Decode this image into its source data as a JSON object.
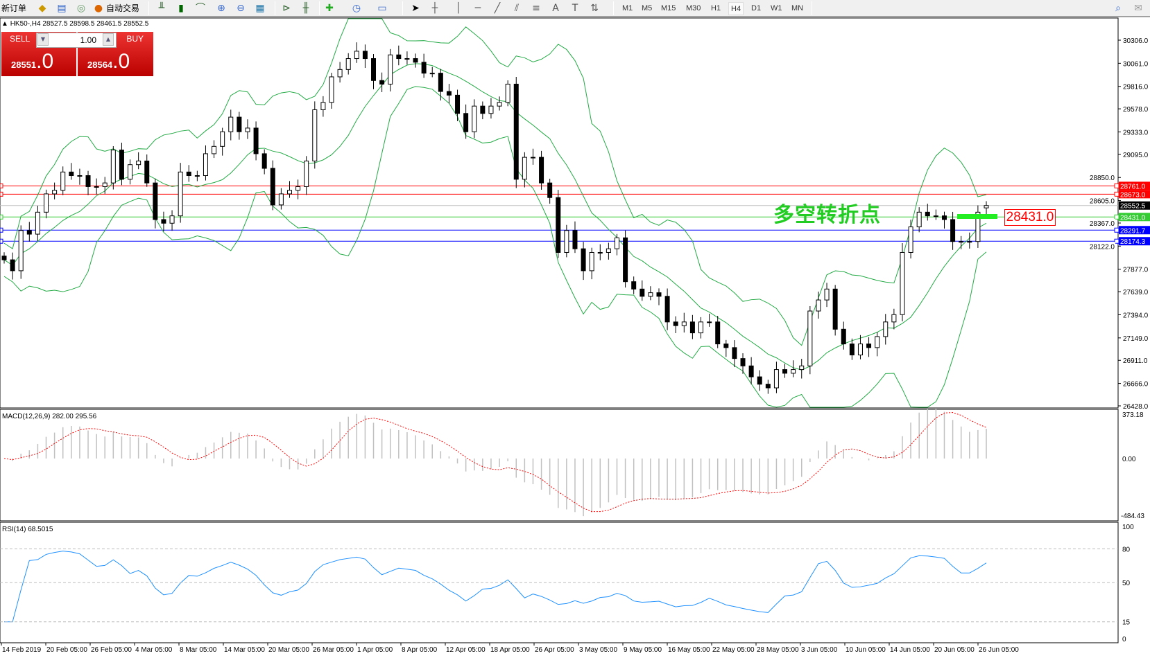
{
  "toolbar": {
    "new_order": "新订单",
    "auto_trading": "自动交易",
    "icons": [
      "history-center-icon",
      "data-window-icon",
      "signals-icon",
      "auto-trading-icon",
      "bar-chart-icon",
      "candlestick-icon",
      "line-chart-icon",
      "zoom-in-icon",
      "zoom-out-icon",
      "tile-windows-icon",
      "auto-scroll-icon",
      "chart-shift-icon",
      "new-chart-icon",
      "periods-icon",
      "templates-icon",
      "cursor-icon",
      "crosshair-icon",
      "vertical-line-icon",
      "horizontal-line-icon",
      "trendline-icon",
      "equidistant-channel-icon",
      "fibonacci-icon",
      "text-icon",
      "text-label-icon",
      "arrows-icon",
      "search-icon",
      "chat-icon"
    ],
    "timeframes": [
      "M1",
      "M5",
      "M15",
      "M30",
      "H1",
      "H4",
      "D1",
      "W1",
      "MN"
    ],
    "active_timeframe": "H4"
  },
  "chart": {
    "header": "HK50-,H4  28527.5 28598.5 28461.5 28552.5",
    "symbol": "HK50-",
    "period": "H4",
    "annotation": "多空转折点",
    "annotation_price": "28431.0",
    "annotation_color": "#22cc22"
  },
  "trade_panel": {
    "sell_label": "SELL",
    "buy_label": "BUY",
    "lot": "1.00",
    "sell_price_main": "28551",
    "sell_price_frac": ".0",
    "buy_price_main": "28564",
    "buy_price_frac": ".0"
  },
  "chart_data": {
    "type": "candlestick",
    "price_axis_ticks": [
      "30306.0",
      "30061.0",
      "29816.0",
      "29578.0",
      "29333.0",
      "29095.0",
      "28850.0",
      "28605.0",
      "28367.0",
      "28122.0",
      "27877.0",
      "27639.0",
      "27394.0",
      "27149.0",
      "26911.0",
      "26666.0",
      "26428.0"
    ],
    "ylim": [
      26428,
      30306
    ],
    "time_axis_labels": [
      "14 Feb 2019",
      "20 Feb 05:00",
      "26 Feb 05:00",
      "4 Mar 05:00",
      "8 Mar 05:00",
      "14 Mar 05:00",
      "20 Mar 05:00",
      "26 Mar 05:00",
      "1 Apr 05:00",
      "8 Apr 05:00",
      "12 Apr 05:00",
      "18 Apr 05:00",
      "26 Apr 05:00",
      "3 May 05:00",
      "9 May 05:00",
      "16 May 05:00",
      "22 May 05:00",
      "28 May 05:00",
      "3 Jun 05:00",
      "10 Jun 05:00",
      "14 Jun 05:00",
      "20 Jun 05:00",
      "26 Jun 05:00"
    ],
    "closes": [
      27977,
      27861,
      28288,
      28249,
      28482,
      28676,
      28714,
      28908,
      28870,
      28870,
      28753,
      28753,
      28792,
      29141,
      28831,
      28986,
      29025,
      28792,
      28404,
      28365,
      28443,
      28908,
      28870,
      28870,
      29102,
      29180,
      29335,
      29490,
      29335,
      29374,
      29102,
      28947,
      28559,
      28676,
      28714,
      28753,
      29025,
      29568,
      29646,
      29917,
      29995,
      30111,
      30189,
      30111,
      29878,
      29840,
      30150,
      30111,
      30111,
      30072,
      29956,
      29956,
      29762,
      29723,
      29529,
      29335,
      29607,
      29529,
      29607,
      29646,
      29840,
      28831,
      29064,
      29064,
      28792,
      28637,
      28055,
      28288,
      28094,
      27861,
      28055,
      28055,
      28094,
      28210,
      27745,
      27667,
      27590,
      27628,
      27590,
      27318,
      27279,
      27318,
      27202,
      27318,
      27318,
      27085,
      27046,
      26930,
      26852,
      26736,
      26658,
      26619,
      26813,
      26774,
      26813,
      26852,
      27434,
      27551,
      27667,
      27241,
      27085,
      26968,
      27085,
      27046,
      27163,
      27318,
      27396,
      28055,
      28326,
      28482,
      28443,
      28443,
      28404,
      28171,
      28171,
      28171,
      28482,
      28552.5
    ],
    "last_bar": {
      "open": 28527.5,
      "high": 28598.5,
      "low": 28461.5,
      "close": 28552.5
    },
    "bollinger_color": "#22aa44",
    "levels": [
      {
        "price": 28761.0,
        "label": "28761.0",
        "color": "#ff0000"
      },
      {
        "price": 28673.0,
        "label": "28673.0",
        "color": "#ff0000"
      },
      {
        "price": 28552.5,
        "label": "28552.5",
        "color": "#000000",
        "line": "#c0c0c0"
      },
      {
        "price": 28431.0,
        "label": "28431.0",
        "color": "#33cc33"
      },
      {
        "price": 28291.7,
        "label": "28291.7",
        "color": "#0000ff"
      },
      {
        "price": 28174.3,
        "label": "28174.3",
        "color": "#0000ff"
      }
    ],
    "macd": {
      "label": "MACD(12,26,9) 282.00 295.56",
      "max_label": "373.18",
      "zero_label": "0.00",
      "min_label": "-484.43",
      "signal_color": "#ff0000",
      "hist_color": "#c0c0c0"
    },
    "rsi": {
      "label": "RSI(14) 68.5015",
      "ticks": [
        "100",
        "80",
        "50",
        "15",
        "0"
      ],
      "color": "#1e90ff"
    }
  }
}
